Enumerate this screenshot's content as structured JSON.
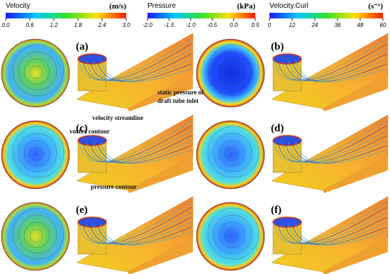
{
  "colorbars": [
    {
      "title": "Velocity",
      "unit": "(m/s)",
      "ticks": [
        "0.0",
        "0.6",
        "1.2",
        "1.8",
        "2.4",
        "3.0"
      ]
    },
    {
      "title": "Pressure",
      "unit": "(kPa)",
      "ticks": [
        "-2.0",
        "-1.5",
        "-1.0",
        "-0.5",
        "0.0",
        "0.5"
      ]
    },
    {
      "title": "Velocity.Curl",
      "unit": "(s⁻¹)",
      "ticks": [
        "0",
        "12",
        "24",
        "36",
        "48",
        "60"
      ]
    }
  ],
  "panels": [
    "(a)",
    "(b)",
    "(c)",
    "(d)",
    "(e)",
    "(f)"
  ],
  "annotations": {
    "static_pressure": [
      "static pressure of",
      "draft tube inlet"
    ],
    "velocity_streamline": "velocity streamline",
    "vortex_contour": "vortex contour",
    "pressure_contour": "pressure contour"
  }
}
